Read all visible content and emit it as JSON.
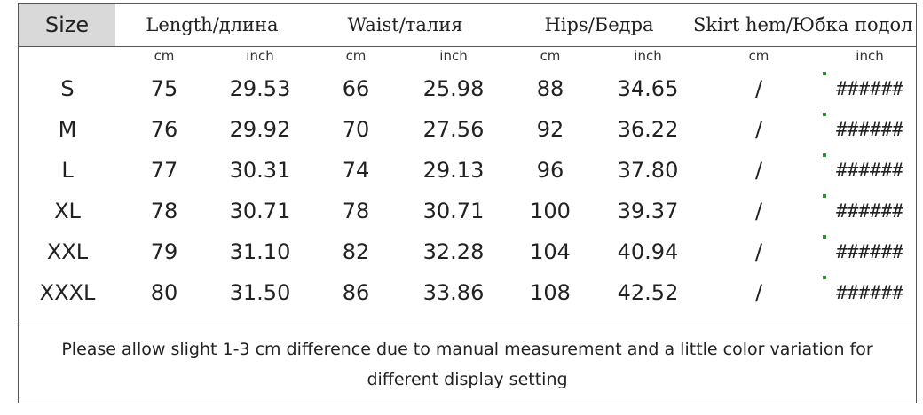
{
  "header": {
    "size": "Size",
    "length": "Length/длина",
    "waist": "Waist/талия",
    "hips": "Hips/Бедра",
    "skirt_hem": "Skirt hem/Юбка подол"
  },
  "units": [
    "cm",
    "inch",
    "cm",
    "inch",
    "cm",
    "inch",
    "cm",
    "inch"
  ],
  "rows": [
    {
      "size": "S",
      "length_cm": "75",
      "length_in": "29.53",
      "waist_cm": "66",
      "waist_in": "25.98",
      "hips_cm": "88",
      "hips_in": "34.65",
      "hem_cm": "/",
      "hem_in": "######"
    },
    {
      "size": "M",
      "length_cm": "76",
      "length_in": "29.92",
      "waist_cm": "70",
      "waist_in": "27.56",
      "hips_cm": "92",
      "hips_in": "36.22",
      "hem_cm": "/",
      "hem_in": "######"
    },
    {
      "size": "L",
      "length_cm": "77",
      "length_in": "30.31",
      "waist_cm": "74",
      "waist_in": "29.13",
      "hips_cm": "96",
      "hips_in": "37.80",
      "hem_cm": "/",
      "hem_in": "######"
    },
    {
      "size": "XL",
      "length_cm": "78",
      "length_in": "30.71",
      "waist_cm": "78",
      "waist_in": "30.71",
      "hips_cm": "100",
      "hips_in": "39.37",
      "hem_cm": "/",
      "hem_in": "######"
    },
    {
      "size": "XXL",
      "length_cm": "79",
      "length_in": "31.10",
      "waist_cm": "82",
      "waist_in": "32.28",
      "hips_cm": "104",
      "hips_in": "40.94",
      "hem_cm": "/",
      "hem_in": "######"
    },
    {
      "size": "XXXL",
      "length_cm": "80",
      "length_in": "31.50",
      "waist_cm": "86",
      "waist_in": "33.86",
      "hips_cm": "108",
      "hips_in": "42.52",
      "hem_cm": "/",
      "hem_in": "######"
    }
  ],
  "note": "Please allow slight 1-3 cm difference due to manual measurement and a little color variation for different display setting",
  "colors": {
    "header_bg": "#d9d9d9",
    "border": "#555555",
    "error_tick": "#2e8b2e"
  }
}
